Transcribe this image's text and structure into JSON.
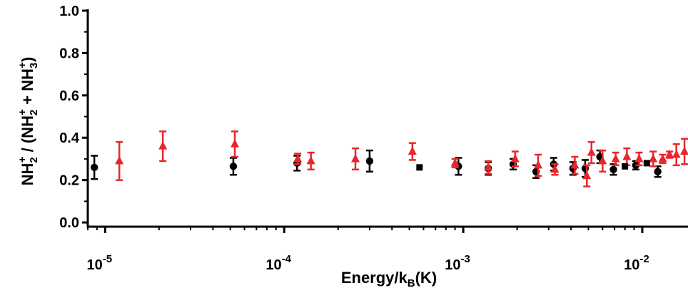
{
  "chart_data": {
    "type": "scatter",
    "title": "",
    "xlabel": {
      "main": "Energy/k",
      "sub": "B",
      "unit": "(K)"
    },
    "ylabel": "NH2+ / (NH2+ + NH3+)",
    "ylabel_parts": {
      "num": "NH",
      "num_sub": "2",
      "num_sup": "+",
      "sep": " / (",
      "a": "NH",
      "a_sub": "2",
      "a_sup": "+",
      "plus": " + ",
      "b": "NH",
      "b_sub": "3",
      "b_sup": "+",
      "close": ")"
    },
    "x_scale": "log",
    "xlim": [
      8e-06,
      0.018
    ],
    "ylim": [
      -0.02,
      1.0
    ],
    "x_ticks": [
      {
        "base": "10",
        "exp": "-5"
      },
      {
        "base": "10",
        "exp": "-4"
      },
      {
        "base": "10",
        "exp": "-3"
      },
      {
        "base": "10",
        "exp": "-2"
      }
    ],
    "y_ticks": [
      "0.0",
      "0.2",
      "0.4",
      "0.6",
      "0.8",
      "1.0"
    ],
    "grid": false,
    "legend": "none",
    "series": [
      {
        "marker": "circle",
        "color": "#000000",
        "points": [
          {
            "x": 8.7e-06,
            "y": 0.26,
            "err": 0.055
          },
          {
            "x": 5.2e-05,
            "y": 0.265,
            "err": 0.04
          },
          {
            "x": 0.000118,
            "y": 0.28,
            "err": 0.035
          },
          {
            "x": 0.0003,
            "y": 0.29,
            "err": 0.05
          },
          {
            "x": 0.00094,
            "y": 0.265,
            "err": 0.04
          },
          {
            "x": 0.00138,
            "y": 0.255,
            "err": 0.03
          },
          {
            "x": 0.0019,
            "y": 0.275,
            "err": 0.025
          },
          {
            "x": 0.00255,
            "y": 0.24,
            "err": 0.03
          },
          {
            "x": 0.0032,
            "y": 0.275,
            "err": 0.03
          },
          {
            "x": 0.0041,
            "y": 0.255,
            "err": 0.03
          },
          {
            "x": 0.0048,
            "y": 0.255,
            "err": 0.04
          },
          {
            "x": 0.0058,
            "y": 0.31,
            "err": 0.03
          },
          {
            "x": 0.0069,
            "y": 0.25,
            "err": 0.025
          },
          {
            "x": 0.0092,
            "y": 0.27,
            "err": 0.02
          },
          {
            "x": 0.0122,
            "y": 0.24,
            "err": 0.025
          }
        ]
      },
      {
        "marker": "triangle",
        "color": "#e8262c",
        "points": [
          {
            "x": 1.2e-05,
            "y": 0.29,
            "err": 0.09
          },
          {
            "x": 2.1e-05,
            "y": 0.36,
            "err": 0.07
          },
          {
            "x": 5.3e-05,
            "y": 0.37,
            "err": 0.06
          },
          {
            "x": 0.000119,
            "y": 0.3,
            "err": 0.025
          },
          {
            "x": 0.000141,
            "y": 0.29,
            "err": 0.04
          },
          {
            "x": 0.00025,
            "y": 0.3,
            "err": 0.05
          },
          {
            "x": 0.00052,
            "y": 0.335,
            "err": 0.04
          },
          {
            "x": 0.0009,
            "y": 0.28,
            "err": 0.02
          },
          {
            "x": 0.00138,
            "y": 0.26,
            "err": 0.03
          },
          {
            "x": 0.00195,
            "y": 0.3,
            "err": 0.035
          },
          {
            "x": 0.00262,
            "y": 0.27,
            "err": 0.05
          },
          {
            "x": 0.00325,
            "y": 0.25,
            "err": 0.025
          },
          {
            "x": 0.0042,
            "y": 0.27,
            "err": 0.04
          },
          {
            "x": 0.0049,
            "y": 0.22,
            "err": 0.05
          },
          {
            "x": 0.0052,
            "y": 0.33,
            "err": 0.05
          },
          {
            "x": 0.006,
            "y": 0.29,
            "err": 0.05
          },
          {
            "x": 0.0071,
            "y": 0.3,
            "err": 0.03
          },
          {
            "x": 0.0082,
            "y": 0.31,
            "err": 0.04
          },
          {
            "x": 0.0096,
            "y": 0.3,
            "err": 0.03
          },
          {
            "x": 0.0115,
            "y": 0.3,
            "err": 0.035
          },
          {
            "x": 0.013,
            "y": 0.3,
            "err": 0.02
          },
          {
            "x": 0.0142,
            "y": 0.32,
            "err": 0.015
          },
          {
            "x": 0.0155,
            "y": 0.32,
            "err": 0.05
          },
          {
            "x": 0.0172,
            "y": 0.335,
            "err": 0.06
          }
        ]
      },
      {
        "marker": "square",
        "color": "#000000",
        "points": [
          {
            "x": 0.00057,
            "y": 0.26,
            "err": 0
          },
          {
            "x": 0.008,
            "y": 0.265,
            "err": 0
          },
          {
            "x": 0.0106,
            "y": 0.28,
            "err": 0
          }
        ]
      }
    ]
  }
}
